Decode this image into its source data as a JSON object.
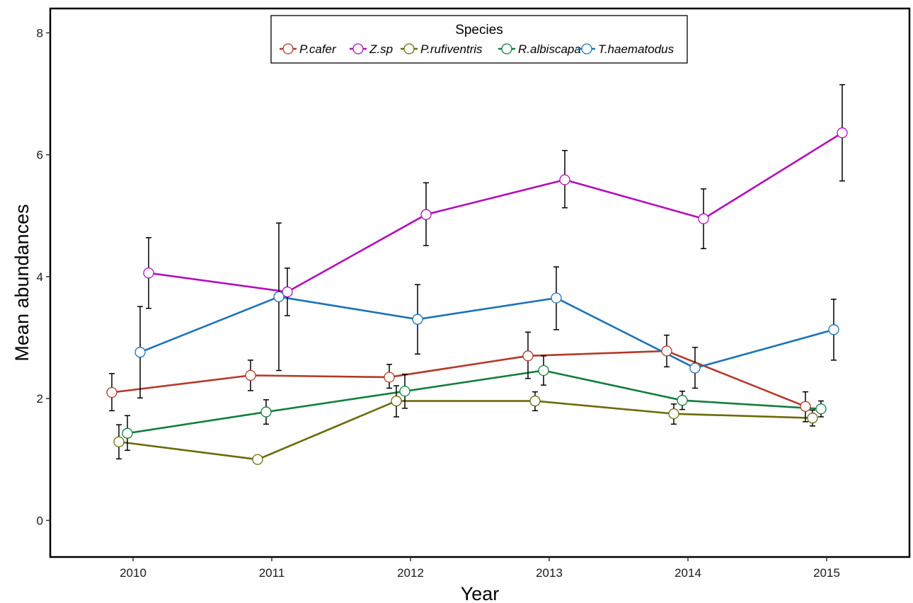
{
  "chart_data": {
    "type": "line",
    "title": "",
    "xlabel": "Year",
    "ylabel": "Mean abundances",
    "categories": [
      "2010",
      "2011",
      "2012",
      "2013",
      "2014",
      "2015"
    ],
    "ylim": [
      -0.6,
      8.4
    ],
    "yticks": [
      "0",
      "2",
      "4",
      "6",
      "8"
    ],
    "grid": false,
    "error_bars": true,
    "legend": {
      "title": "Species",
      "placement": "top-center"
    },
    "series": [
      {
        "name": "P.cafer",
        "color": "#b5392a",
        "values": [
          2.1,
          2.38,
          2.35,
          2.7,
          2.78,
          1.87
        ],
        "err_low": [
          1.8,
          2.13,
          2.17,
          2.33,
          2.52,
          1.62
        ],
        "err_high": [
          2.41,
          2.63,
          2.56,
          3.09,
          3.04,
          2.11
        ]
      },
      {
        "name": "Z.sp",
        "color": "#b20fbb",
        "values": [
          4.06,
          3.75,
          5.02,
          5.59,
          4.95,
          6.36
        ],
        "err_low": [
          3.48,
          3.36,
          4.51,
          5.13,
          4.46,
          5.57
        ],
        "err_high": [
          4.64,
          4.14,
          5.54,
          6.07,
          5.44,
          7.15
        ]
      },
      {
        "name": "P.rufiventris",
        "color": "#6d6a0a",
        "values": [
          1.29,
          1.0,
          1.96,
          1.96,
          1.75,
          1.68
        ],
        "err_low": [
          1.01,
          1.0,
          1.7,
          1.8,
          1.58,
          1.55
        ],
        "err_high": [
          1.57,
          1.0,
          2.21,
          2.11,
          1.91,
          1.81
        ]
      },
      {
        "name": "R.albiscapa",
        "color": "#137f3d",
        "values": [
          1.43,
          1.78,
          2.12,
          2.46,
          1.97,
          1.83
        ],
        "err_low": [
          1.15,
          1.58,
          1.84,
          2.22,
          1.82,
          1.7
        ],
        "err_high": [
          1.72,
          1.98,
          2.4,
          2.7,
          2.12,
          1.96
        ]
      },
      {
        "name": "T.haematodus",
        "color": "#1b73b8",
        "values": [
          2.76,
          3.67,
          3.3,
          3.65,
          2.5,
          3.13
        ],
        "err_low": [
          2.01,
          2.46,
          2.73,
          3.13,
          2.17,
          2.63
        ],
        "err_high": [
          3.51,
          4.88,
          3.87,
          4.16,
          2.84,
          3.63
        ]
      }
    ]
  }
}
